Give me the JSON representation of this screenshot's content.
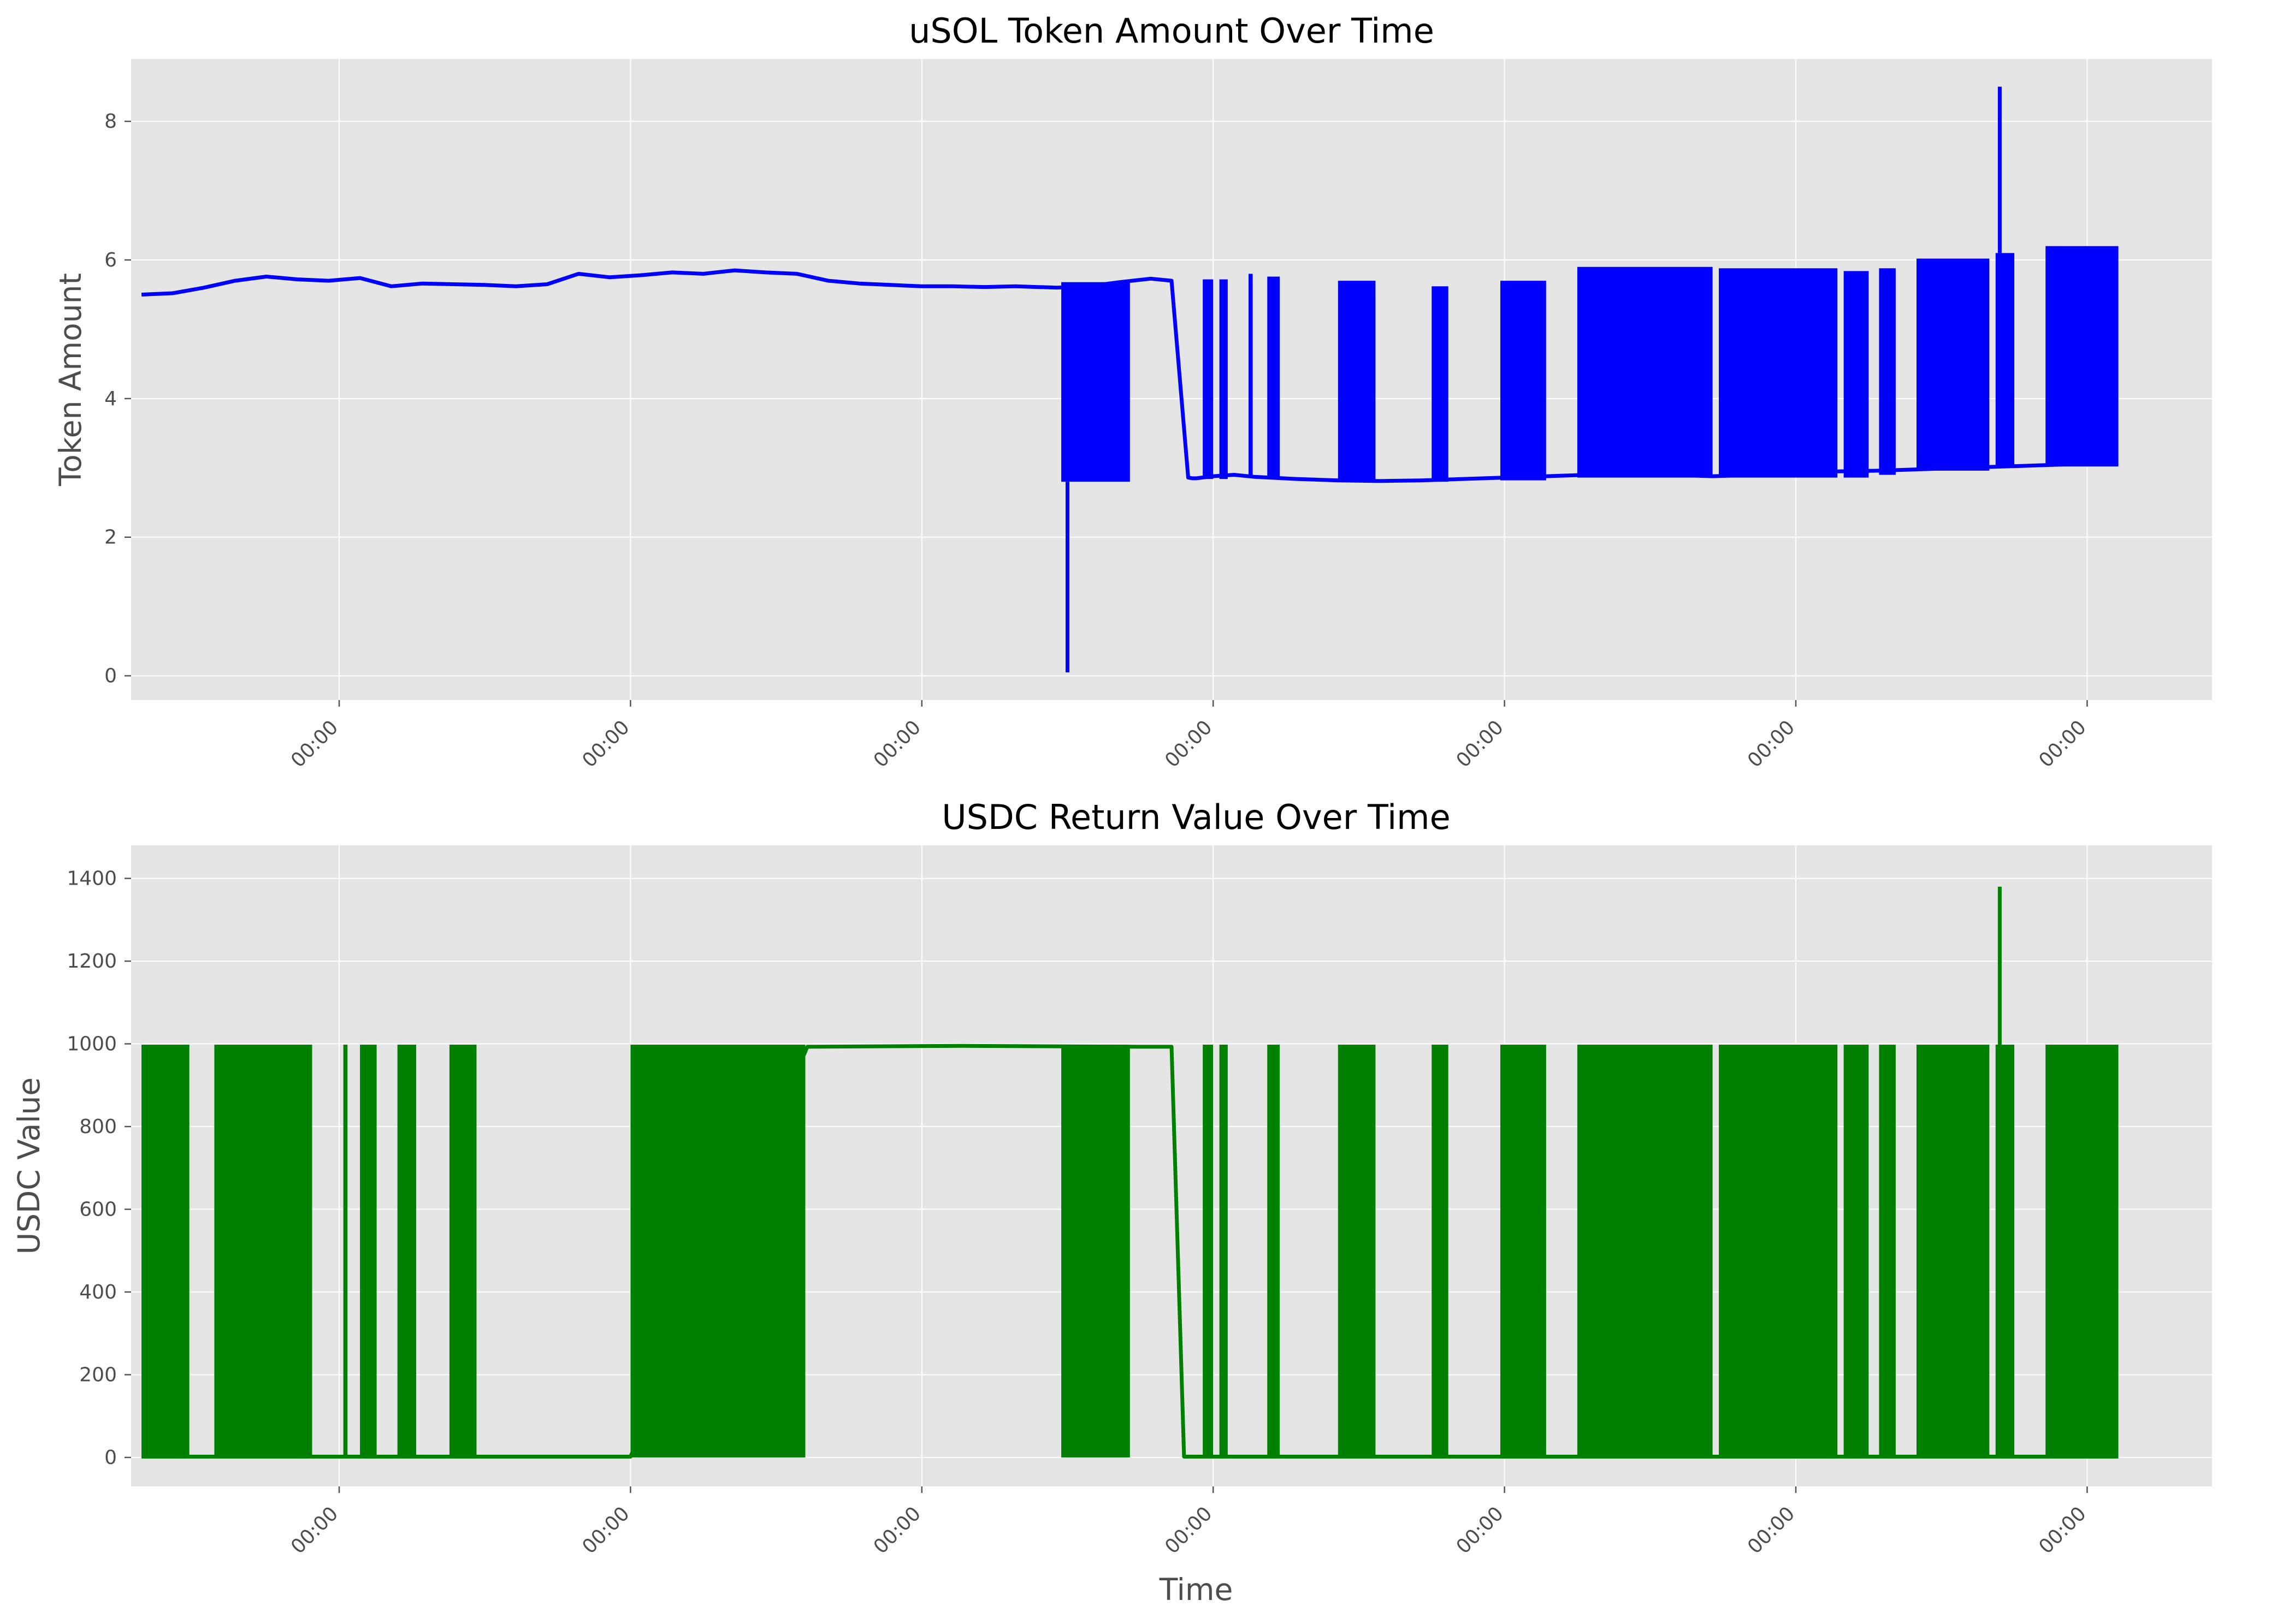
{
  "chart_data": [
    {
      "type": "line",
      "title": "uSOL Token Amount Over Time",
      "xlabel": "",
      "ylabel": "Token Amount",
      "ylim": [
        -0.35,
        8.9
      ],
      "yticks": [
        0,
        2,
        4,
        6,
        8
      ],
      "xlim": [
        0,
        100
      ],
      "xtick_positions": [
        10,
        24,
        38,
        52,
        66,
        80,
        94
      ],
      "xtick_labels": [
        "00:00",
        "00:00",
        "00:00",
        "00:00",
        "00:00",
        "00:00",
        "00:00"
      ],
      "grid": true,
      "series": [
        {
          "color": "#0000ff",
          "x": [
            0.5,
            2.0,
            3.5,
            5.0,
            6.5,
            8.0,
            9.5,
            11.0,
            12.5,
            14.0,
            15.5,
            17.0,
            18.5,
            20.0,
            21.5,
            23.0,
            24.5,
            26.0,
            27.5,
            29.0,
            30.5,
            32.0,
            33.5,
            35.0,
            36.5,
            38.0,
            39.5,
            41.0,
            42.5,
            44.5,
            46.0,
            47.5,
            49.0,
            50.0,
            50.8,
            51.0,
            51.2,
            52.0,
            53.0,
            54.0,
            56.0,
            58.0,
            60.0,
            62.0,
            64.0,
            66.0,
            68.0,
            70.0,
            72.0,
            74.0,
            76.0,
            78.0,
            80.0,
            82.0,
            84.0,
            86.0,
            88.0,
            90.0,
            92.0,
            94.0,
            95.5
          ],
          "y": [
            5.5,
            5.52,
            5.6,
            5.7,
            5.76,
            5.72,
            5.7,
            5.74,
            5.62,
            5.66,
            5.65,
            5.64,
            5.62,
            5.65,
            5.8,
            5.75,
            5.78,
            5.82,
            5.8,
            5.85,
            5.82,
            5.8,
            5.7,
            5.66,
            5.64,
            5.62,
            5.62,
            5.61,
            5.62,
            5.6,
            5.62,
            5.68,
            5.73,
            5.7,
            2.86,
            2.85,
            2.85,
            2.88,
            2.9,
            2.87,
            2.84,
            2.82,
            2.81,
            2.82,
            2.84,
            2.86,
            2.88,
            2.9,
            2.92,
            2.9,
            2.88,
            2.9,
            2.93,
            2.95,
            2.96,
            2.98,
            3.0,
            3.02,
            3.04,
            3.06,
            3.08
          ]
        }
      ],
      "spikes": [
        {
          "x": 45.0,
          "y": 0.05
        },
        {
          "x": 89.8,
          "y": 8.5
        }
      ],
      "oscillation_bands": [
        {
          "x_start": 44.7,
          "x_end": 48.0,
          "low": 2.8,
          "high": 5.68
        },
        {
          "x_start": 51.5,
          "x_end": 52.0,
          "low": 2.84,
          "high": 5.72
        },
        {
          "x_start": 52.3,
          "x_end": 52.7,
          "low": 2.84,
          "high": 5.72
        },
        {
          "x_start": 53.7,
          "x_end": 53.9,
          "low": 2.86,
          "high": 5.8
        },
        {
          "x_start": 54.6,
          "x_end": 55.2,
          "low": 2.86,
          "high": 5.76
        },
        {
          "x_start": 58.0,
          "x_end": 59.8,
          "low": 2.82,
          "high": 5.7
        },
        {
          "x_start": 62.5,
          "x_end": 63.3,
          "low": 2.8,
          "high": 5.62
        },
        {
          "x_start": 65.8,
          "x_end": 68.0,
          "low": 2.82,
          "high": 5.7
        },
        {
          "x_start": 69.5,
          "x_end": 76.0,
          "low": 2.86,
          "high": 5.9
        },
        {
          "x_start": 76.3,
          "x_end": 82.0,
          "low": 2.86,
          "high": 5.88
        },
        {
          "x_start": 82.3,
          "x_end": 83.5,
          "low": 2.86,
          "high": 5.84
        },
        {
          "x_start": 84.0,
          "x_end": 84.8,
          "low": 2.9,
          "high": 5.88
        },
        {
          "x_start": 85.8,
          "x_end": 89.3,
          "low": 2.96,
          "high": 6.02
        },
        {
          "x_start": 89.6,
          "x_end": 90.5,
          "low": 3.0,
          "high": 6.1
        },
        {
          "x_start": 92.0,
          "x_end": 95.5,
          "low": 3.02,
          "high": 6.2
        }
      ]
    },
    {
      "type": "line",
      "title": "USDC Return Value Over Time",
      "xlabel": "Time",
      "ylabel": "USDC Value",
      "ylim": [
        -70,
        1480
      ],
      "yticks": [
        0,
        200,
        400,
        600,
        800,
        1000,
        1200,
        1400
      ],
      "xlim": [
        0,
        100
      ],
      "xtick_positions": [
        10,
        24,
        38,
        52,
        66,
        80,
        94
      ],
      "xtick_labels": [
        "00:00",
        "00:00",
        "00:00",
        "00:00",
        "00:00",
        "00:00",
        "00:00"
      ],
      "grid": true,
      "series": [
        {
          "color": "#008000",
          "x": [
            0.5,
            4.0,
            8.5,
            24.0,
            32.5,
            40.0,
            48.5,
            50.0,
            50.6,
            51.0,
            60.0,
            70.0,
            80.0,
            90.0,
            95.5
          ],
          "y": [
            2,
            2,
            2,
            2,
            993,
            995,
            993,
            993,
            2,
            2,
            2,
            2,
            2,
            2,
            2
          ]
        }
      ],
      "spikes": [
        {
          "x": 89.8,
          "y": 1380
        }
      ],
      "oscillation_bands": [
        {
          "x_start": 0.5,
          "x_end": 2.8,
          "low": 0,
          "high": 998
        },
        {
          "x_start": 4.0,
          "x_end": 8.7,
          "low": 0,
          "high": 998
        },
        {
          "x_start": 10.2,
          "x_end": 10.4,
          "low": 0,
          "high": 998
        },
        {
          "x_start": 11.0,
          "x_end": 11.8,
          "low": 0,
          "high": 998
        },
        {
          "x_start": 12.8,
          "x_end": 13.7,
          "low": 0,
          "high": 998
        },
        {
          "x_start": 15.3,
          "x_end": 16.6,
          "low": 0,
          "high": 998
        },
        {
          "x_start": 24.0,
          "x_end": 32.4,
          "low": 0,
          "high": 998
        },
        {
          "x_start": 44.7,
          "x_end": 48.0,
          "low": 0,
          "high": 998
        },
        {
          "x_start": 51.5,
          "x_end": 52.0,
          "low": 0,
          "high": 998
        },
        {
          "x_start": 52.3,
          "x_end": 52.7,
          "low": 0,
          "high": 998
        },
        {
          "x_start": 54.6,
          "x_end": 55.2,
          "low": 0,
          "high": 998
        },
        {
          "x_start": 58.0,
          "x_end": 59.8,
          "low": 0,
          "high": 998
        },
        {
          "x_start": 62.5,
          "x_end": 63.3,
          "low": 0,
          "high": 998
        },
        {
          "x_start": 65.8,
          "x_end": 68.0,
          "low": 0,
          "high": 998
        },
        {
          "x_start": 69.5,
          "x_end": 76.0,
          "low": 0,
          "high": 998
        },
        {
          "x_start": 76.3,
          "x_end": 82.0,
          "low": 0,
          "high": 998
        },
        {
          "x_start": 82.3,
          "x_end": 83.5,
          "low": 0,
          "high": 998
        },
        {
          "x_start": 84.0,
          "x_end": 84.8,
          "low": 0,
          "high": 998
        },
        {
          "x_start": 85.8,
          "x_end": 89.3,
          "low": 0,
          "high": 998
        },
        {
          "x_start": 89.6,
          "x_end": 90.5,
          "low": 0,
          "high": 998
        },
        {
          "x_start": 92.0,
          "x_end": 95.5,
          "low": 0,
          "high": 998
        }
      ]
    }
  ]
}
